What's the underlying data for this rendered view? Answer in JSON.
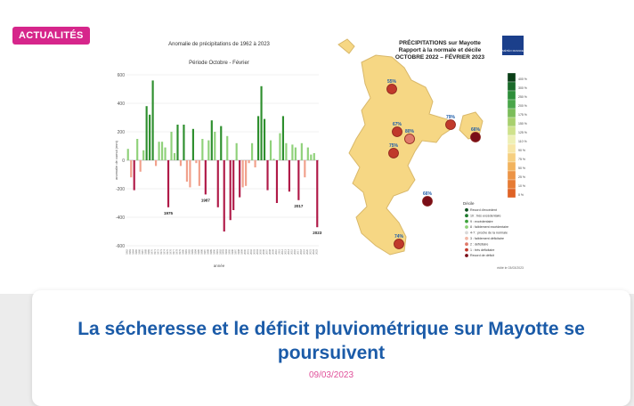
{
  "badge": "ACTUALITÉS",
  "article": {
    "title": "La sécheresse et le déficit pluviométrique sur Mayotte se poursuivent",
    "date": "09/03/2023"
  },
  "chart_data": {
    "type": "bar",
    "title": "Anomalie de précipitations de 1962 à 2023",
    "subtitle": "Période Octobre - Février",
    "ylabel": "anomalie de cumul (mm)",
    "xlabel": "année",
    "ylim": [
      -600,
      600
    ],
    "yticks": [
      600,
      400,
      200,
      0,
      -200,
      -400,
      -600
    ],
    "grid": true,
    "x_start_year": 1962,
    "values": [
      80,
      -120,
      -210,
      150,
      -80,
      70,
      380,
      320,
      560,
      -40,
      130,
      130,
      90,
      -330,
      200,
      50,
      250,
      -40,
      250,
      -150,
      -190,
      220,
      -20,
      -180,
      150,
      -240,
      140,
      280,
      200,
      -330,
      240,
      -500,
      170,
      -420,
      -350,
      120,
      -260,
      -190,
      -180,
      -20,
      120,
      -50,
      310,
      520,
      290,
      -210,
      140,
      10,
      -300,
      190,
      310,
      120,
      -220,
      110,
      90,
      -280,
      120,
      -120,
      90,
      40,
      50,
      -470
    ],
    "annotations": [
      {
        "year": 1975,
        "text": "1975"
      },
      {
        "year": 1987,
        "text": "1987"
      },
      {
        "year": 2017,
        "text": "2017"
      },
      {
        "year": 2023,
        "text": "2023"
      }
    ],
    "colors": {
      "positive_light": "#8fd17a",
      "positive_dark": "#2e8f2e",
      "negative_light": "#f1a08b",
      "negative_dark": "#b01a48"
    }
  },
  "map": {
    "title_lines": [
      "PRÉCIPITATIONS sur Mayotte",
      "Rapport à la normale et décile",
      "OCTOBRE 2022 – FÉVRIER 2023"
    ],
    "brand": "MÉTÉO FRANCE",
    "points": [
      {
        "label": "55%"
      },
      {
        "label": "67%"
      },
      {
        "label": "80%"
      },
      {
        "label": "75%"
      },
      {
        "label": "79%"
      },
      {
        "label": "66%"
      },
      {
        "label": "66%"
      },
      {
        "label": "74%"
      }
    ],
    "scale_labels": [
      "400 %",
      "300 %",
      "250 %",
      "200 %",
      "175 %",
      "150 %",
      "125 %",
      "110 %",
      "90 %",
      "75 %",
      "50 %",
      "25 %",
      "10 %",
      "0 %"
    ],
    "scale_colors": [
      "#0b3f17",
      "#1b6b2a",
      "#2e8f3b",
      "#4aa64a",
      "#7bbd5a",
      "#a8d06e",
      "#cfe28c",
      "#eef0b5",
      "#f7e6a6",
      "#f6cf80",
      "#f2b35d",
      "#ec9446",
      "#e67b34",
      "#df6326"
    ],
    "legend_title": "Décile",
    "legend_items": [
      "Record d'excédent",
      "10 : très excédentaire",
      "9 : excédentaire",
      "8 : faiblement excédentaire",
      "4-7 : proche de la normale",
      "3 : faiblement déficitaire",
      "2 : déficitaire",
      "1 : très déficitaire",
      "Record de déficit"
    ],
    "legend_colors": [
      "#0a4d1c",
      "#1e7b2e",
      "#3ea33b",
      "#8fd07a",
      "#d9d9d9",
      "#f2b8a6",
      "#e07a6a",
      "#c0392b",
      "#7a0e18"
    ],
    "footer": "édité le 03/03/2023"
  }
}
